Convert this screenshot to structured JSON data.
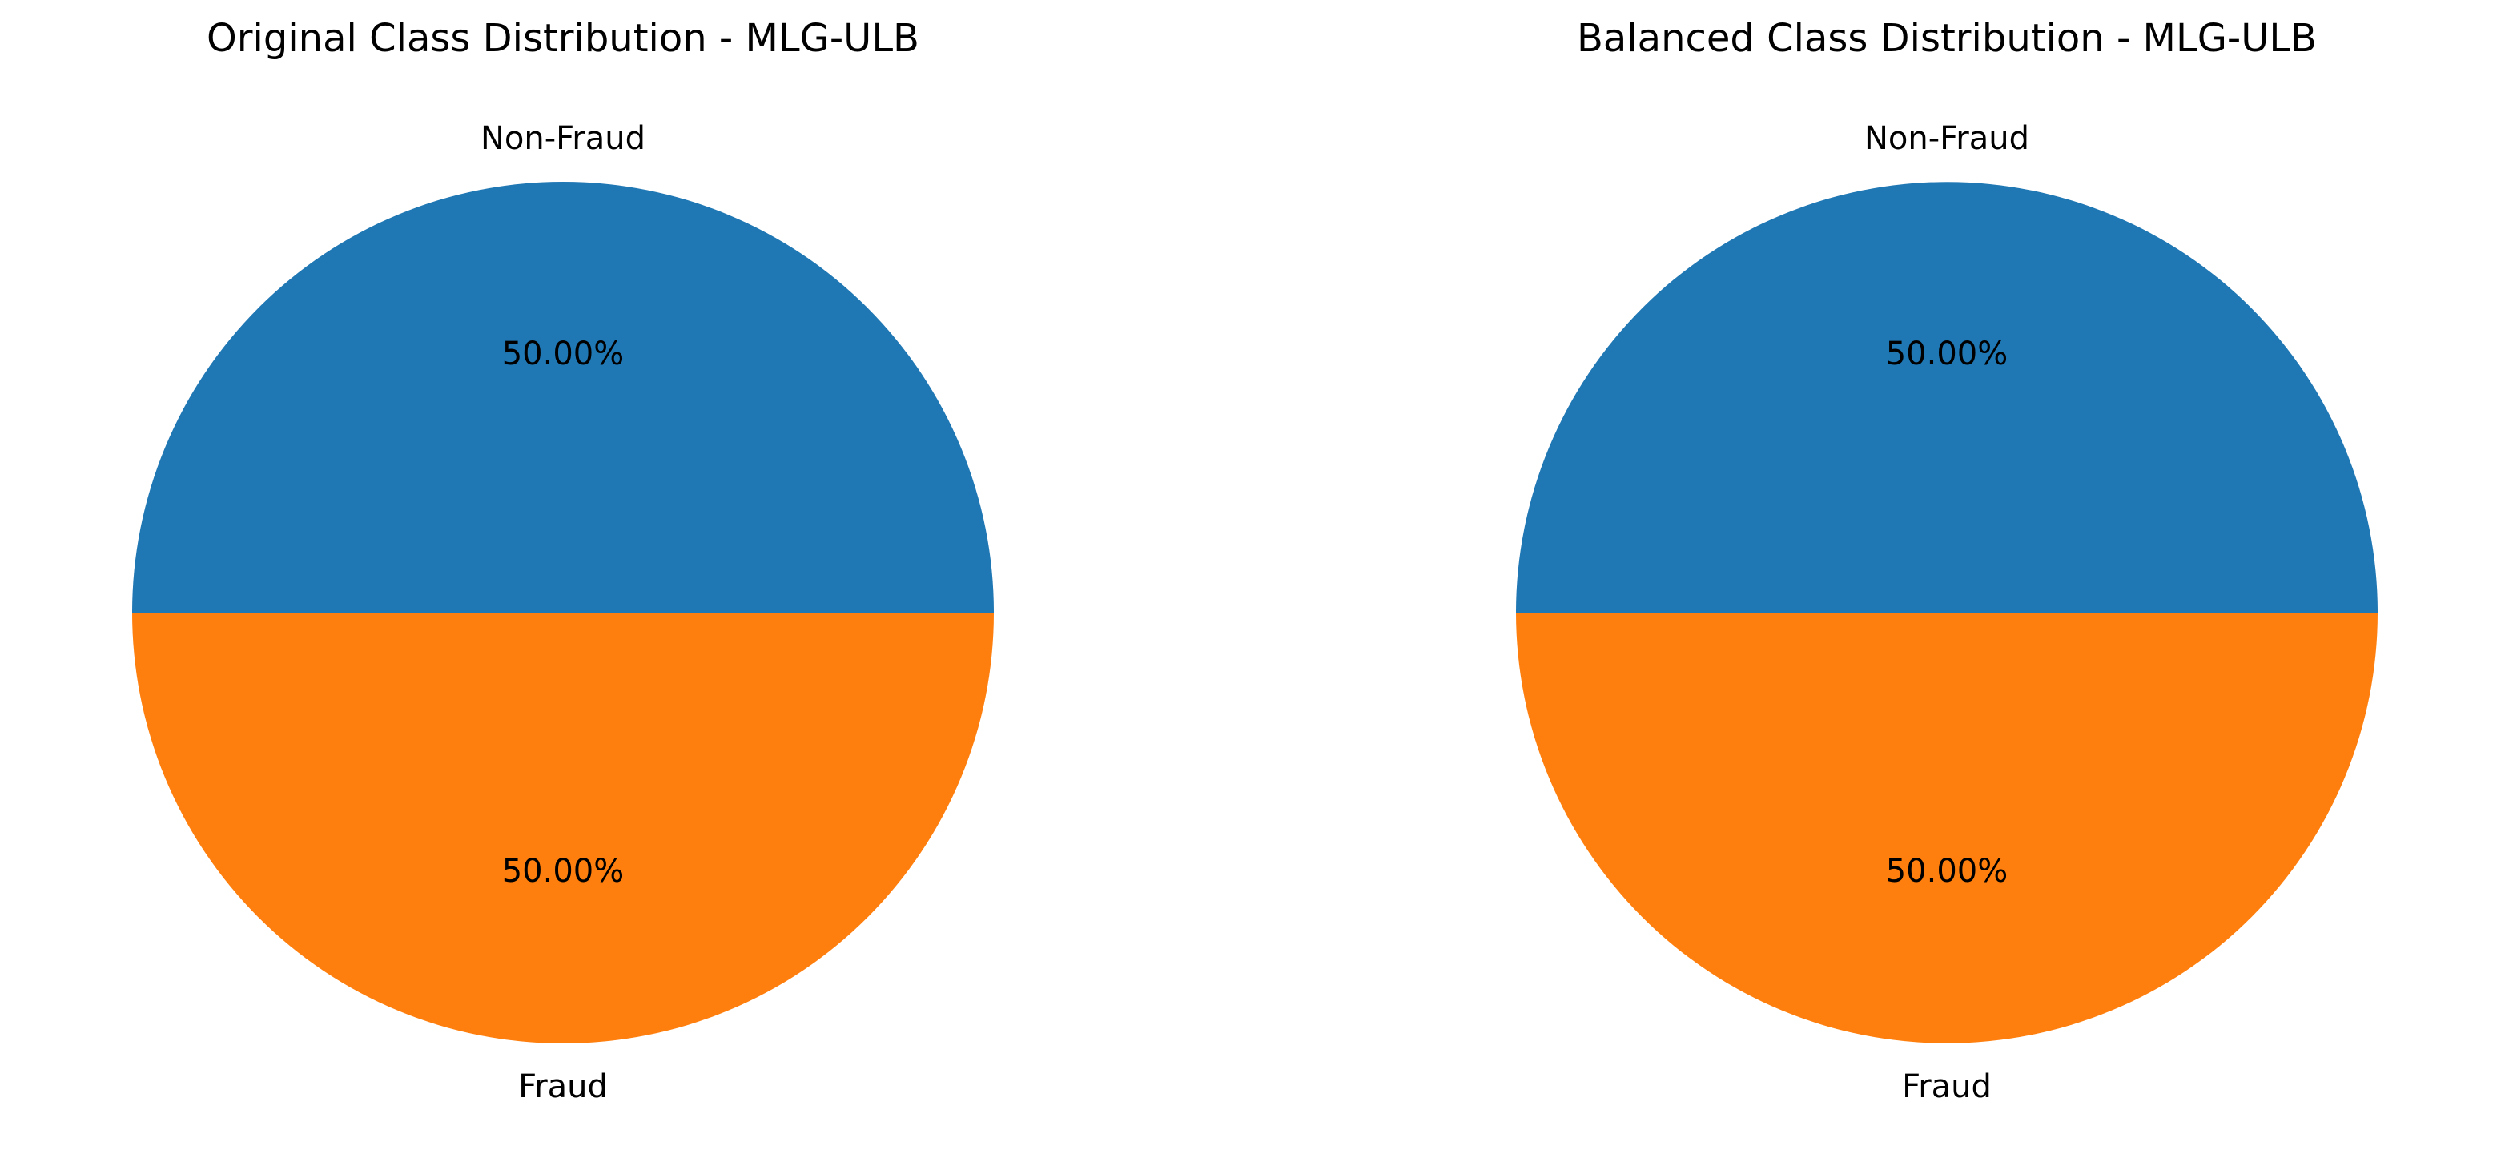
{
  "chart_data": [
    {
      "type": "pie",
      "title": "Original Class Distribution - MLG-ULB",
      "labels": [
        "Non-Fraud",
        "Fraud"
      ],
      "values": [
        50.0,
        50.0
      ],
      "value_labels": [
        "50.00%",
        "50.00%"
      ],
      "colors": [
        "#1f77b4",
        "#ff7f0e"
      ]
    },
    {
      "type": "pie",
      "title": "Balanced Class Distribution - MLG-ULB",
      "labels": [
        "Non-Fraud",
        "Fraud"
      ],
      "values": [
        50.0,
        50.0
      ],
      "value_labels": [
        "50.00%",
        "50.00%"
      ],
      "colors": [
        "#1f77b4",
        "#ff7f0e"
      ]
    }
  ]
}
